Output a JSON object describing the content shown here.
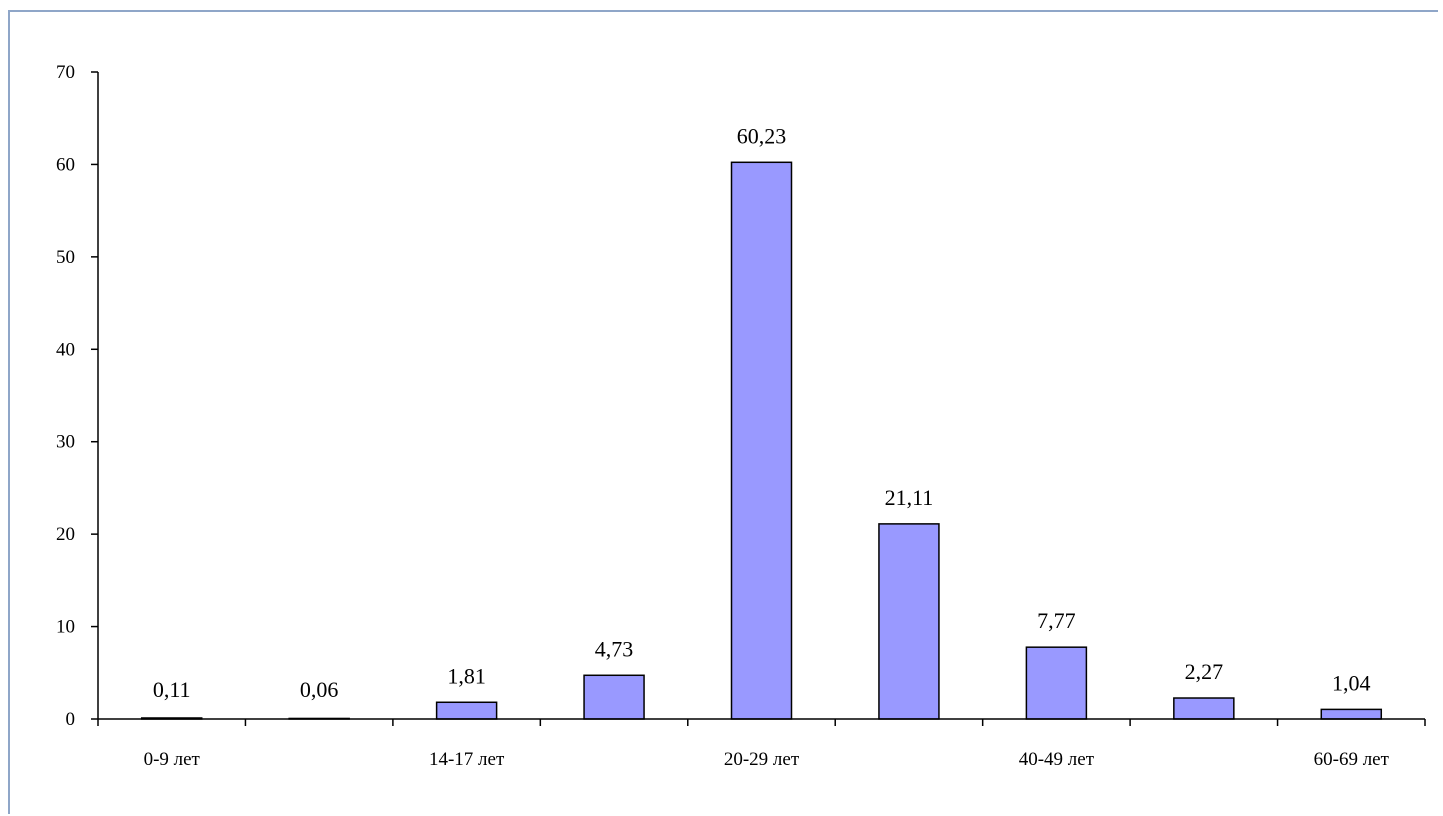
{
  "chart_data": {
    "type": "bar",
    "categories": [
      "0-9 лет",
      "",
      "14-17 лет",
      "",
      "20-29 лет",
      "",
      "40-49 лет",
      "",
      "60-69 лет"
    ],
    "values": [
      0.11,
      0.06,
      1.81,
      4.73,
      60.23,
      21.11,
      7.77,
      2.27,
      1.04
    ],
    "data_labels": [
      "0,11",
      "0,06",
      "1,81",
      "4,73",
      "60,23",
      "21,11",
      "7,77",
      "2,27",
      "1,04"
    ],
    "title": "",
    "xlabel": "",
    "ylabel": "",
    "ylim": [
      0,
      70
    ],
    "yticks": [
      "0",
      "10",
      "20",
      "30",
      "40",
      "50",
      "60",
      "70"
    ],
    "grid": false,
    "legend": "none",
    "colors": {
      "bar_fill": "#9999ff",
      "bar_stroke": "#000000",
      "axis": "#000000",
      "frame": "#8fa6c8"
    }
  }
}
